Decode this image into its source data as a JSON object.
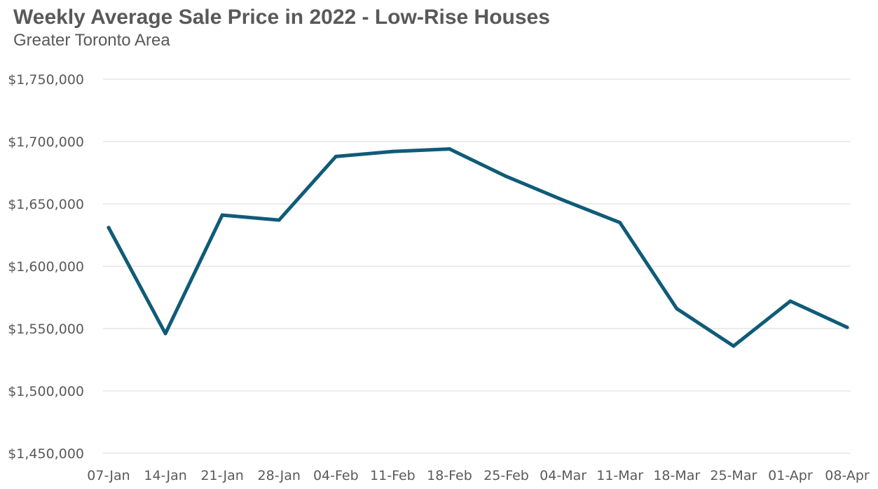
{
  "chart_data": {
    "type": "line",
    "title": "Weekly Average Sale Price in 2022 - Low-Rise Houses",
    "subtitle": "Greater Toronto Area",
    "xlabel": "",
    "ylabel": "",
    "categories": [
      "07-Jan",
      "14-Jan",
      "21-Jan",
      "28-Jan",
      "04-Feb",
      "11-Feb",
      "18-Feb",
      "25-Feb",
      "04-Mar",
      "11-Mar",
      "18-Mar",
      "25-Mar",
      "01-Apr",
      "08-Apr"
    ],
    "series": [
      {
        "values": [
          1631000,
          1546000,
          1641000,
          1637000,
          1688000,
          1692000,
          1694000,
          1672000,
          1653000,
          1635000,
          1566000,
          1536000,
          1572000,
          1551000
        ]
      }
    ],
    "ylim": [
      1450000,
      1750000
    ],
    "yticks": [
      1450000,
      1500000,
      1550000,
      1600000,
      1650000,
      1700000,
      1750000
    ],
    "ytick_labels": [
      "$1,450,000",
      "$1,500,000",
      "$1,550,000",
      "$1,600,000",
      "$1,650,000",
      "$1,700,000",
      "$1,750,000"
    ],
    "grid": true,
    "legend": "none",
    "colors": {
      "line": "#0f5b78",
      "grid": "#d9d9d9",
      "text": "#595959"
    }
  }
}
